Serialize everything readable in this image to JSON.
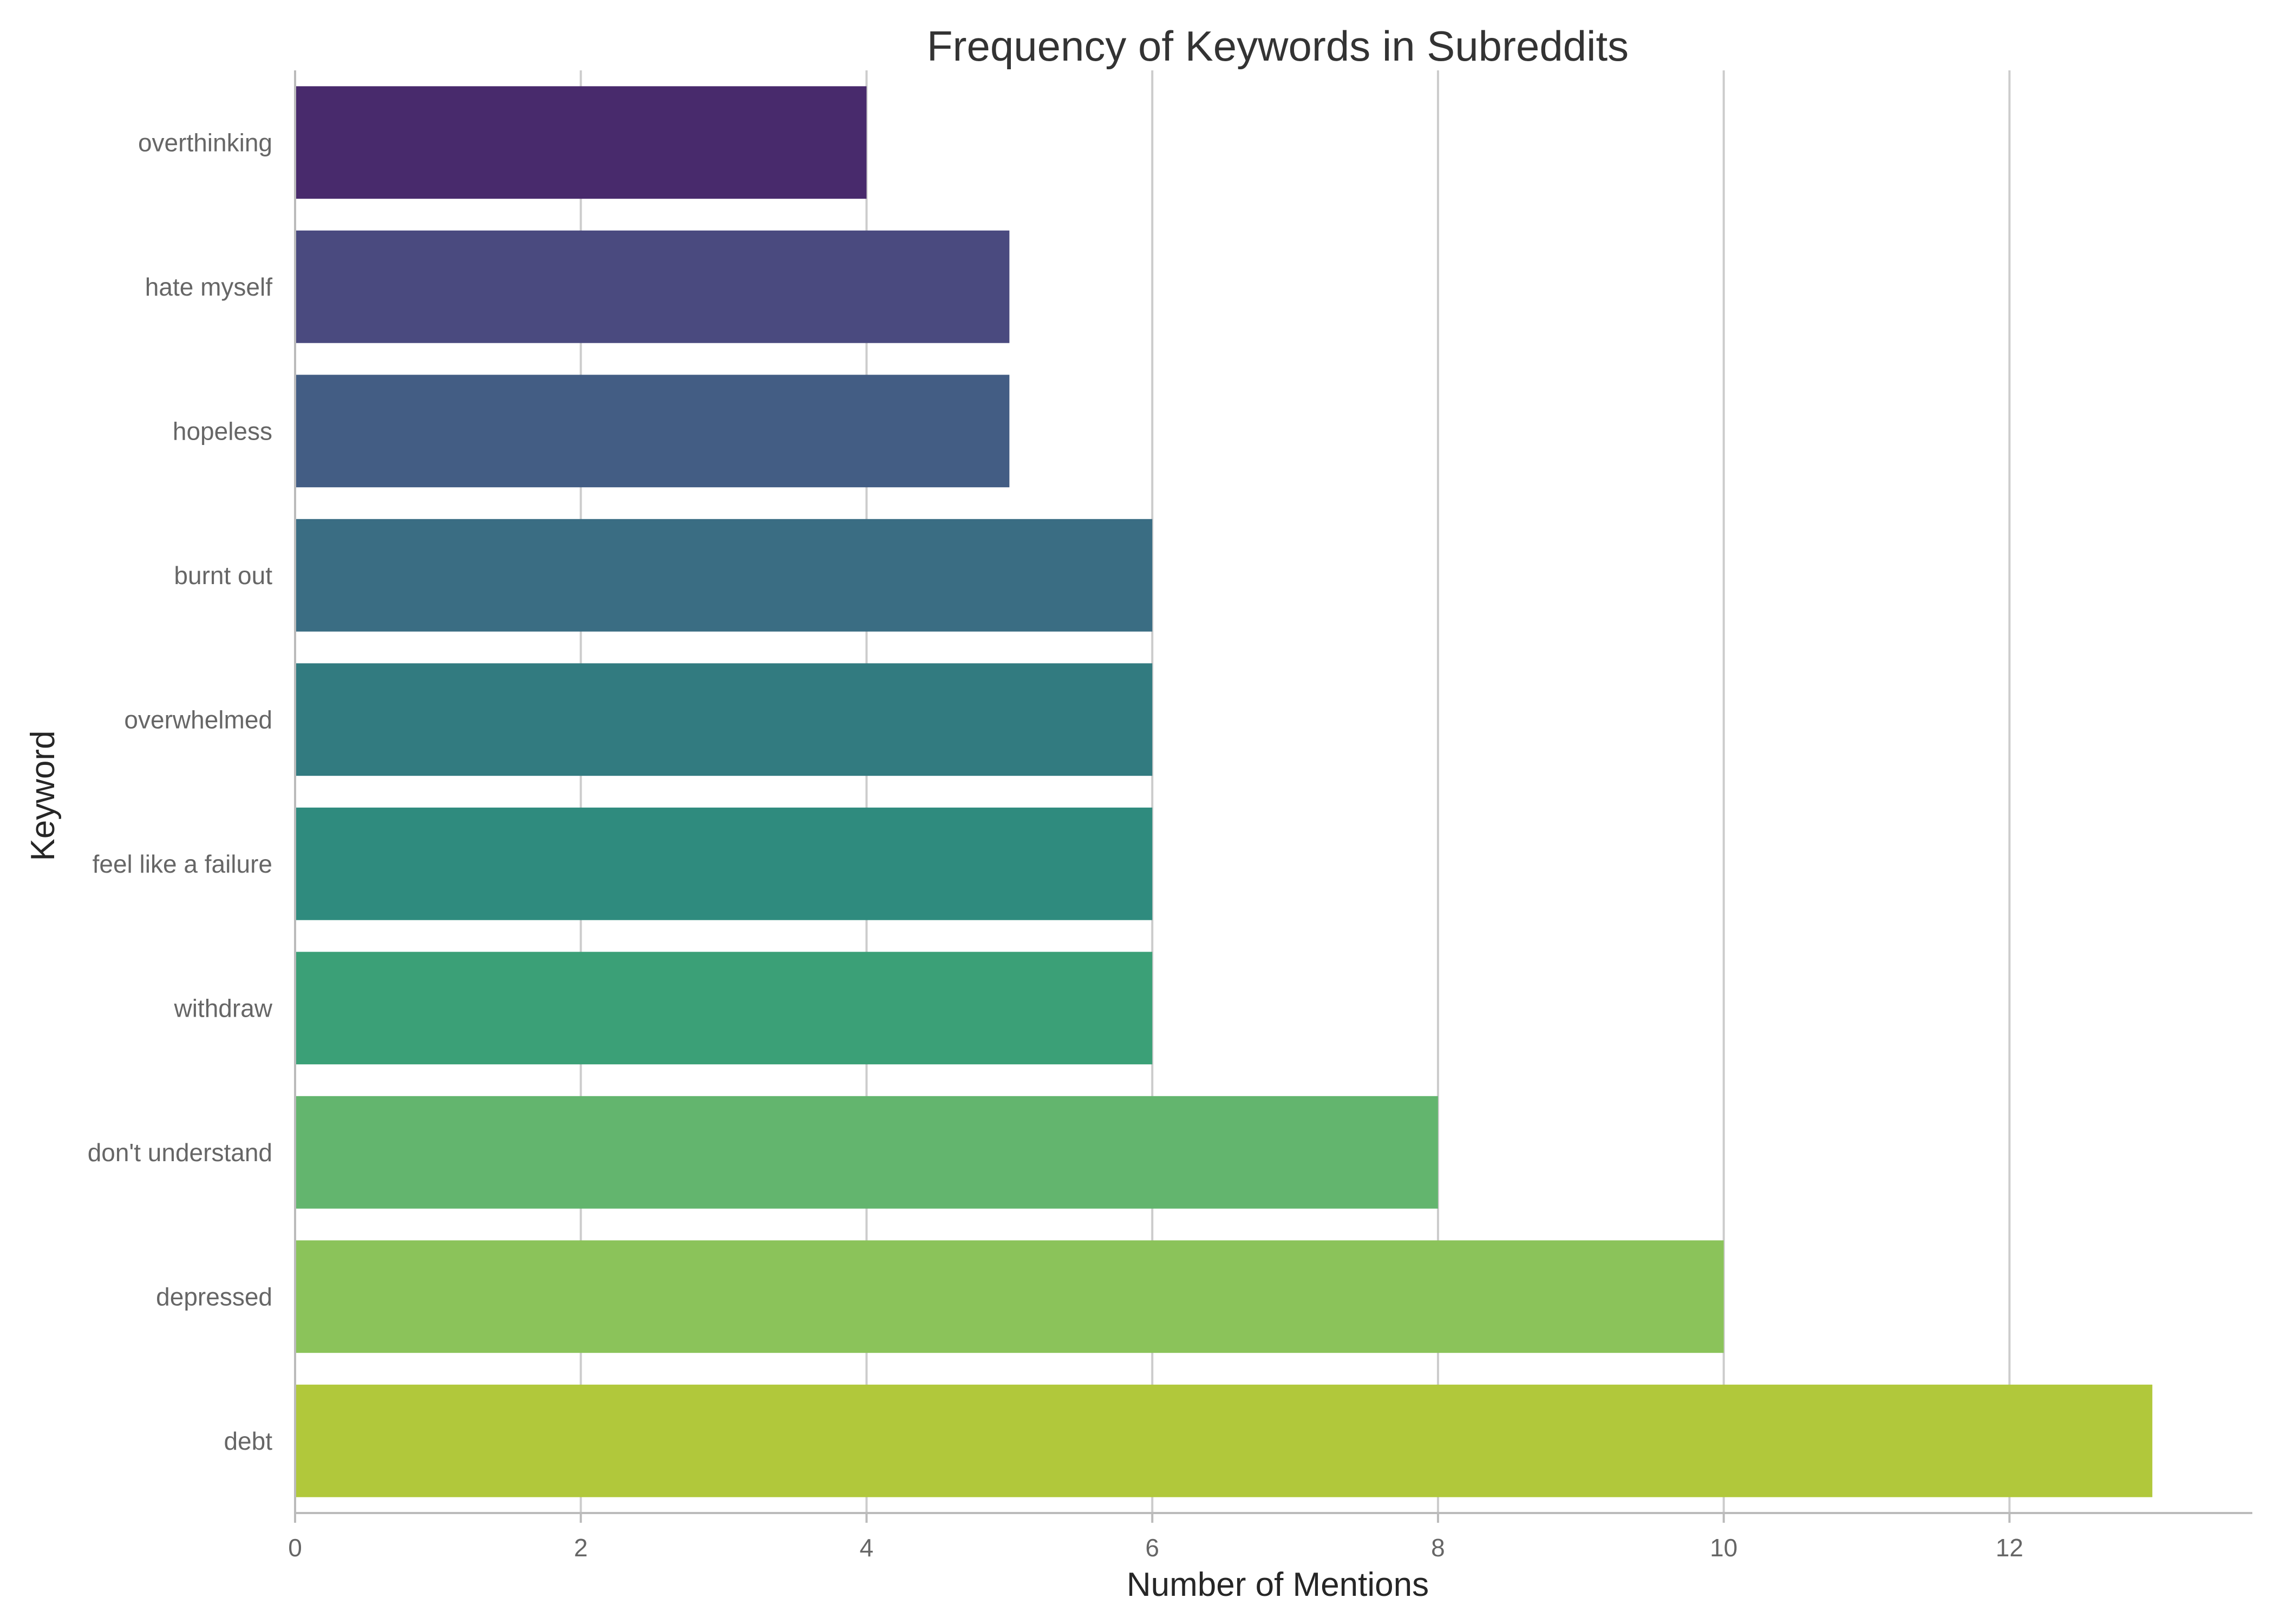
{
  "chart_data": {
    "type": "bar",
    "orientation": "horizontal",
    "title": "Frequency of Keywords in Subreddits",
    "xlabel": "Number of Mentions",
    "ylabel": "Keyword",
    "categories": [
      "overthinking",
      "hate myself",
      "hopeless",
      "burnt out",
      "overwhelmed",
      "feel like a failure",
      "withdraw",
      "don't understand",
      "depressed",
      "debt"
    ],
    "values": [
      4,
      5,
      5,
      6,
      6,
      6,
      6,
      8,
      10,
      13
    ],
    "colors": [
      "#482a6c",
      "#4a4a7f",
      "#435d84",
      "#3a6d83",
      "#327b80",
      "#2f8b7e",
      "#3ba077",
      "#63b56e",
      "#8bc35a",
      "#b1c83b"
    ],
    "xlim": [
      0,
      13.7
    ],
    "xticks": [
      0,
      2,
      4,
      6,
      8,
      10,
      12
    ],
    "grid": "vertical",
    "legend": "none"
  }
}
